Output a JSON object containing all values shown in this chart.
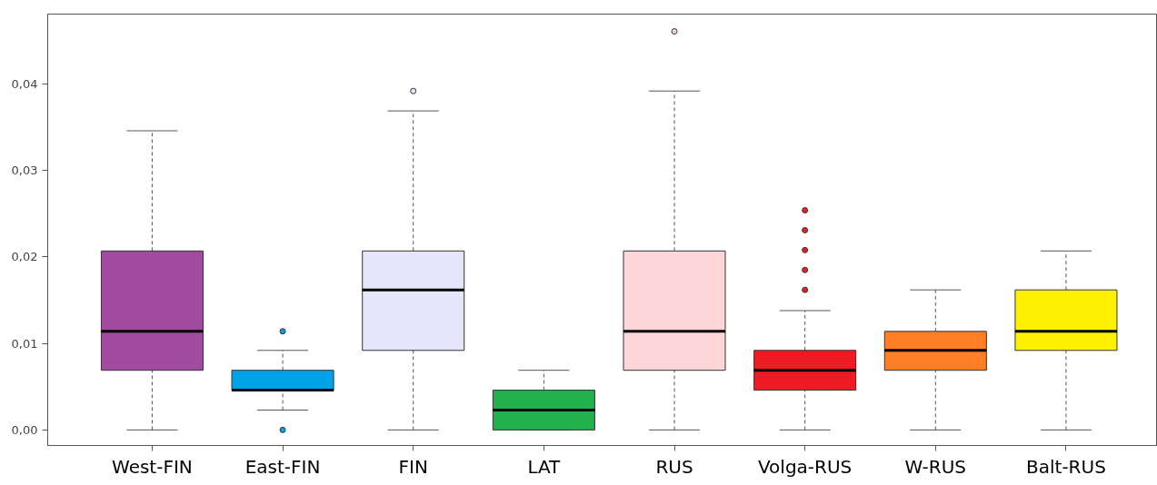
{
  "chart_data": {
    "type": "box",
    "categories": [
      "West-FIN",
      "East-FIN",
      "FIN",
      "LAT",
      "RUS",
      "Volga-RUS",
      "W-RUS",
      "Balt-RUS"
    ],
    "colors": [
      "#a04aa0",
      "#00a2e8",
      "#e6e6fa",
      "#22b14c",
      "#fdd7d7",
      "#ed1c24",
      "#ff7f27",
      "#fff200"
    ],
    "boxes": [
      {
        "low": 0,
        "q1": 0.0069,
        "median": 0.0114,
        "q3": 0.0207,
        "high": 0.0346
      },
      {
        "low": 0.0023,
        "q1": 0.0046,
        "median": 0.0046,
        "q3": 0.0069,
        "high": 0.0092,
        "outliers": [
          0.0114,
          0
        ]
      },
      {
        "low": 0,
        "q1": 0.0092,
        "median": 0.0162,
        "q3": 0.0207,
        "high": 0.0369,
        "outliers": [
          0.0392
        ]
      },
      {
        "low": 0,
        "q1": 0,
        "median": 0.0023,
        "q3": 0.0046,
        "high": 0.0069
      },
      {
        "low": 0,
        "q1": 0.0069,
        "median": 0.0114,
        "q3": 0.0207,
        "high": 0.0392,
        "outliers": [
          0.0461
        ]
      },
      {
        "low": 0,
        "q1": 0.0046,
        "median": 0.0069,
        "q3": 0.0092,
        "high": 0.0138,
        "outliers": [
          0.0162,
          0.0185,
          0.0208,
          0.0231,
          0.0254
        ]
      },
      {
        "low": 0,
        "q1": 0.0069,
        "median": 0.0092,
        "q3": 0.0114,
        "high": 0.0162
      },
      {
        "low": 0,
        "q1": 0.0092,
        "median": 0.0114,
        "q3": 0.0162,
        "high": 0.0207
      }
    ],
    "ylim": [
      -0.0018,
      0.0481
    ],
    "yticks": [
      {
        "value": 0,
        "label": "0,00"
      },
      {
        "value": 0.01,
        "label": "0,01"
      },
      {
        "value": 0.02,
        "label": "0,02"
      },
      {
        "value": 0.03,
        "label": "0,03"
      },
      {
        "value": 0.04,
        "label": "0,04"
      }
    ],
    "grid": false
  }
}
